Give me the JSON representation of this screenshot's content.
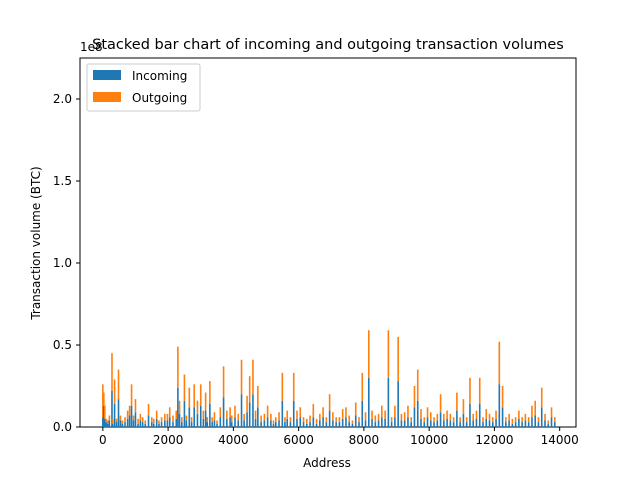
{
  "chart_data": {
    "type": "bar",
    "stacked": true,
    "title": "Stacked bar chart of incoming and outgoing transaction volumes",
    "xlabel": "Address",
    "ylabel": "Transaction volume (BTC)",
    "y_offset_label": "1e8",
    "xlim": [
      -700,
      14500
    ],
    "ylim": [
      0,
      225000000
    ],
    "x_ticks": [
      0,
      2000,
      4000,
      6000,
      8000,
      10000,
      12000,
      14000
    ],
    "x_tick_labels": [
      "0",
      "2000",
      "4000",
      "6000",
      "8000",
      "10000",
      "12000",
      "14000"
    ],
    "y_ticks": [
      0,
      50000000,
      100000000,
      150000000,
      200000000
    ],
    "y_tick_labels": [
      "0.0",
      "0.5",
      "1.0",
      "1.5",
      "2.0"
    ],
    "grid": false,
    "legend": {
      "position": "upper-left",
      "entries": [
        "Incoming",
        "Outgoing"
      ]
    },
    "series_colors": {
      "Incoming": "#1f77b4",
      "Outgoing": "#ff7f0e"
    },
    "x": [
      0,
      30,
      60,
      100,
      150,
      200,
      280,
      300,
      360,
      420,
      480,
      540,
      600,
      680,
      760,
      820,
      880,
      940,
      1000,
      1080,
      1150,
      1220,
      1300,
      1400,
      1500,
      1560,
      1650,
      1720,
      1800,
      1900,
      1980,
      2050,
      2150,
      2250,
      2300,
      2350,
      2420,
      2500,
      2560,
      2650,
      2720,
      2800,
      2900,
      3000,
      3080,
      3150,
      3200,
      3280,
      3350,
      3420,
      3500,
      3600,
      3700,
      3800,
      3900,
      3950,
      4050,
      4150,
      4250,
      4330,
      4420,
      4500,
      4600,
      4680,
      4750,
      4850,
      4950,
      5050,
      5150,
      5230,
      5300,
      5400,
      5500,
      5580,
      5650,
      5750,
      5850,
      5950,
      6050,
      6150,
      6250,
      6350,
      6450,
      6550,
      6650,
      6750,
      6850,
      6950,
      7050,
      7150,
      7250,
      7350,
      7450,
      7550,
      7650,
      7750,
      7850,
      7950,
      8050,
      8150,
      8250,
      8350,
      8450,
      8550,
      8650,
      8750,
      8850,
      8950,
      9050,
      9150,
      9250,
      9350,
      9450,
      9550,
      9650,
      9750,
      9850,
      9950,
      10050,
      10150,
      10250,
      10350,
      10450,
      10550,
      10650,
      10750,
      10850,
      10950,
      11050,
      11150,
      11250,
      11350,
      11450,
      11550,
      11650,
      11750,
      11850,
      11950,
      12050,
      12150,
      12250,
      12350,
      12450,
      12550,
      12650,
      12750,
      12850,
      12950,
      13050,
      13150,
      13250,
      13350,
      13450,
      13550,
      13650,
      13750,
      13850
    ],
    "series": [
      {
        "name": "Incoming",
        "values": [
          6000000,
          13000000,
          5000000,
          3000000,
          2000000,
          4000000,
          22000000,
          2000000,
          14000000,
          3000000,
          17000000,
          4000000,
          2000000,
          3000000,
          5000000,
          7000000,
          13000000,
          4000000,
          9000000,
          2000000,
          4000000,
          3000000,
          2000000,
          7000000,
          3000000,
          2000000,
          5000000,
          2000000,
          3000000,
          4000000,
          4000000,
          6000000,
          3000000,
          5000000,
          24000000,
          8000000,
          3000000,
          16000000,
          4000000,
          12000000,
          3000000,
          12000000,
          8000000,
          13000000,
          5000000,
          10000000,
          3000000,
          14000000,
          3000000,
          4000000,
          2000000,
          6000000,
          18000000,
          5000000,
          6000000,
          3000000,
          6000000,
          4000000,
          20000000,
          4000000,
          9000000,
          15000000,
          20000000,
          5000000,
          12000000,
          3000000,
          4000000,
          6000000,
          4000000,
          2000000,
          3000000,
          4000000,
          16000000,
          3000000,
          5000000,
          3000000,
          16000000,
          5000000,
          6000000,
          3000000,
          2000000,
          3000000,
          6000000,
          2000000,
          4000000,
          6000000,
          3000000,
          10000000,
          4000000,
          3000000,
          3000000,
          5000000,
          6000000,
          3000000,
          2000000,
          7000000,
          3000000,
          16000000,
          4000000,
          30000000,
          5000000,
          3000000,
          4000000,
          6000000,
          5000000,
          30000000,
          3000000,
          6000000,
          28000000,
          4000000,
          4000000,
          6000000,
          3000000,
          12000000,
          16000000,
          5000000,
          3000000,
          6000000,
          4000000,
          3000000,
          4000000,
          9000000,
          4000000,
          5000000,
          4000000,
          3000000,
          10000000,
          3000000,
          8000000,
          3000000,
          14000000,
          4000000,
          5000000,
          14000000,
          3000000,
          5000000,
          4000000,
          3000000,
          5000000,
          26000000,
          12000000,
          3000000,
          4000000,
          2000000,
          3000000,
          5000000,
          3000000,
          4000000,
          3000000,
          6000000,
          7000000,
          3000000,
          12000000,
          4000000,
          2000000,
          6000000,
          3000000
        ]
      },
      {
        "name": "Outgoing",
        "values": [
          20000000,
          8000000,
          8000000,
          2000000,
          2000000,
          3000000,
          23000000,
          3000000,
          15000000,
          2000000,
          18000000,
          3000000,
          2000000,
          3000000,
          5000000,
          6000000,
          13000000,
          3000000,
          8000000,
          3000000,
          4000000,
          3000000,
          2000000,
          7000000,
          3000000,
          3000000,
          5000000,
          2000000,
          3000000,
          4000000,
          4000000,
          6000000,
          4000000,
          5000000,
          25000000,
          8000000,
          3000000,
          16000000,
          3000000,
          12000000,
          3000000,
          14000000,
          8000000,
          13000000,
          5000000,
          11000000,
          3000000,
          14000000,
          3000000,
          5000000,
          2000000,
          6000000,
          19000000,
          5000000,
          6000000,
          4000000,
          7000000,
          4000000,
          21000000,
          4000000,
          10000000,
          16000000,
          21000000,
          5000000,
          13000000,
          4000000,
          4000000,
          7000000,
          4000000,
          2000000,
          3000000,
          5000000,
          17000000,
          3000000,
          5000000,
          3000000,
          17000000,
          5000000,
          6000000,
          3000000,
          3000000,
          4000000,
          8000000,
          3000000,
          4000000,
          6000000,
          3000000,
          10000000,
          5000000,
          3000000,
          3000000,
          6000000,
          6000000,
          4000000,
          2000000,
          8000000,
          3000000,
          17000000,
          5000000,
          29000000,
          5000000,
          4000000,
          4000000,
          7000000,
          5000000,
          29000000,
          3000000,
          7000000,
          27000000,
          4000000,
          5000000,
          7000000,
          3000000,
          13000000,
          19000000,
          6000000,
          3000000,
          6000000,
          5000000,
          3000000,
          4000000,
          11000000,
          4000000,
          5000000,
          4000000,
          3000000,
          11000000,
          3000000,
          9000000,
          3000000,
          16000000,
          4000000,
          5000000,
          16000000,
          3000000,
          6000000,
          4000000,
          3000000,
          5000000,
          26000000,
          13000000,
          3000000,
          4000000,
          3000000,
          3000000,
          5000000,
          3000000,
          4000000,
          3000000,
          7000000,
          9000000,
          3000000,
          12000000,
          4000000,
          2000000,
          6000000,
          3000000
        ]
      }
    ]
  }
}
